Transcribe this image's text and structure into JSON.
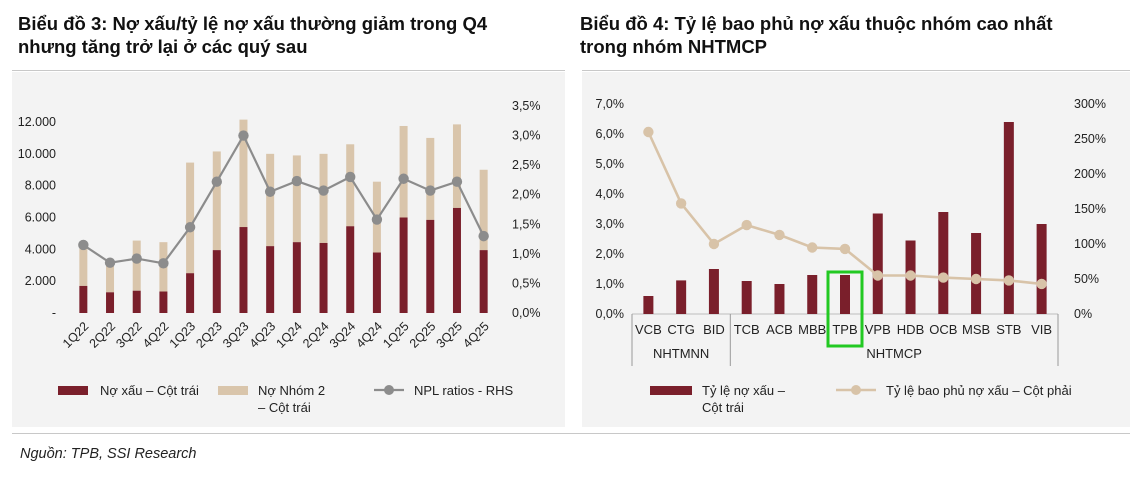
{
  "titles": {
    "chart3": "Biểu đồ 3: Nợ xấu/tỷ lệ nợ xấu thường giảm trong Q4\nnhưng tăng trở lại ở các quý sau",
    "chart4": "Biểu đồ 4: Tỷ lệ bao phủ nợ xấu thuộc nhóm cao nhất\ntrong nhóm NHTMCP"
  },
  "footer": "Nguồn: TPB, SSI Research",
  "colors": {
    "npl": "#7a1f2b",
    "group2": "#d9c5ab",
    "ratio": "#8c8c8c",
    "coverage": "#d8c3a8",
    "highlight": "#22c922"
  },
  "chart_data": [
    {
      "type": "bar",
      "stacked": true,
      "categories": [
        "1Q22",
        "2Q22",
        "3Q22",
        "4Q22",
        "1Q23",
        "2Q23",
        "3Q23",
        "4Q23",
        "1Q24",
        "2Q24",
        "3Q24",
        "4Q24",
        "1Q25",
        "2Q25",
        "3Q25",
        "4Q25"
      ],
      "series": [
        {
          "name": "Nợ xấu – Cột trái",
          "type": "bar",
          "values": [
            1700,
            1300,
            1400,
            1350,
            2500,
            3950,
            5400,
            4200,
            4450,
            4400,
            5450,
            3800,
            6000,
            5850,
            6600,
            3950
          ]
        },
        {
          "name": "Nợ Nhóm 2\n– Cột trái",
          "type": "bar",
          "values": [
            2350,
            1800,
            3150,
            3100,
            6950,
            6200,
            6750,
            5800,
            5450,
            5600,
            5150,
            4450,
            5750,
            5150,
            5250,
            5050
          ]
        },
        {
          "name": "NPL ratios - RHS",
          "type": "line",
          "axis": "right",
          "values": [
            1.15,
            0.85,
            0.92,
            0.84,
            1.45,
            2.22,
            3.0,
            2.05,
            2.23,
            2.07,
            2.3,
            1.58,
            2.27,
            2.07,
            2.22,
            1.3
          ]
        }
      ],
      "left_axis": {
        "ticks": [
          0,
          2000,
          4000,
          6000,
          8000,
          10000,
          12000
        ],
        "tick_labels": [
          "-",
          "2.000",
          "4.000",
          "6.000",
          "8.000",
          "10.000",
          "12.000"
        ],
        "ylim": [
          0,
          12000
        ]
      },
      "right_axis": {
        "ticks": [
          0,
          0.5,
          1,
          1.5,
          2,
          2.5,
          3,
          3.5
        ],
        "tick_labels": [
          "0,0%",
          "0,5%",
          "1,0%",
          "1,5%",
          "2,0%",
          "2,5%",
          "3,0%",
          "3,5%"
        ],
        "ylim": [
          0,
          3.5
        ]
      },
      "grid": false,
      "legend_placement": "bottom"
    },
    {
      "type": "bar",
      "categories": [
        "VCB",
        "CTG",
        "BID",
        "TCB",
        "ACB",
        "MBB",
        "TPB",
        "VPB",
        "HDB",
        "OCB",
        "MSB",
        "STB",
        "VIB"
      ],
      "groups": [
        {
          "label": "NHTMNN",
          "count": 3
        },
        {
          "label": "NHTMCP",
          "count": 10
        }
      ],
      "highlight": "TPB",
      "series": [
        {
          "name": "Tỷ lệ nợ xấu –\nCột trái",
          "type": "bar",
          "values": [
            0.6,
            1.12,
            1.5,
            1.1,
            1.0,
            1.3,
            1.3,
            3.35,
            2.45,
            3.4,
            2.7,
            6.4,
            3.0
          ]
        },
        {
          "name": "Tỷ lệ bao phủ nợ xấu – Cột phải",
          "type": "line",
          "axis": "right",
          "values": [
            260,
            158,
            100,
            127,
            113,
            95,
            93,
            55,
            55,
            52,
            50,
            48,
            43
          ]
        }
      ],
      "left_axis": {
        "ticks": [
          0,
          1,
          2,
          3,
          4,
          5,
          6,
          7
        ],
        "tick_labels": [
          "0,0%",
          "1,0%",
          "2,0%",
          "3,0%",
          "4,0%",
          "5,0%",
          "6,0%",
          "7,0%"
        ],
        "ylim": [
          0,
          7
        ]
      },
      "right_axis": {
        "ticks": [
          0,
          50,
          100,
          150,
          200,
          250,
          300
        ],
        "tick_labels": [
          "0%",
          "50%",
          "100%",
          "150%",
          "200%",
          "250%",
          "300%"
        ],
        "ylim": [
          0,
          300
        ]
      },
      "grid": false,
      "legend_placement": "bottom"
    }
  ]
}
